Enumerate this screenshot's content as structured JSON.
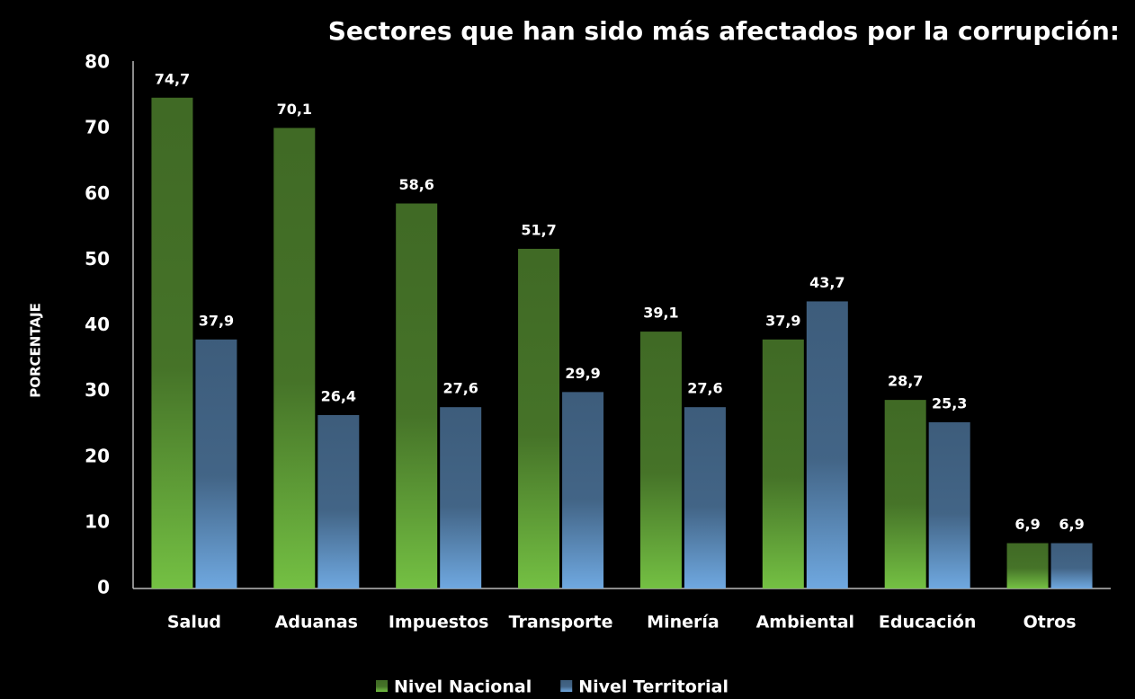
{
  "chart_data": {
    "type": "bar",
    "title": "Sectores que han sido más afectados por la corrupción:",
    "y_label": "PORCENTAJE",
    "categories": [
      "Salud",
      "Aduanas",
      "Impuestos",
      "Transporte",
      "Minería",
      "Ambiental",
      "Educación",
      "Otros"
    ],
    "series": [
      {
        "name": "Nivel Nacional",
        "color": "#74c043",
        "values": [
          74.7,
          70.1,
          58.6,
          51.7,
          39.1,
          37.9,
          28.7,
          6.9
        ],
        "value_labels": [
          "74,7",
          "70,1",
          "58,6",
          "51,7",
          "39,1",
          "37,9",
          "28,7",
          "6,9"
        ]
      },
      {
        "name": "Nivel Territorial",
        "color": "#6fa8e0",
        "values": [
          37.9,
          26.4,
          27.6,
          29.9,
          27.6,
          43.7,
          25.3,
          6.9
        ],
        "value_labels": [
          "37,9",
          "26,4",
          "27,6",
          "29,9",
          "27,6",
          "43,7",
          "25,3",
          "6,9"
        ]
      }
    ],
    "ylim": [
      0,
      80
    ],
    "yticks": [
      0,
      10,
      20,
      30,
      40,
      50,
      60,
      70,
      80
    ],
    "grid": false,
    "legend": "bottom"
  }
}
